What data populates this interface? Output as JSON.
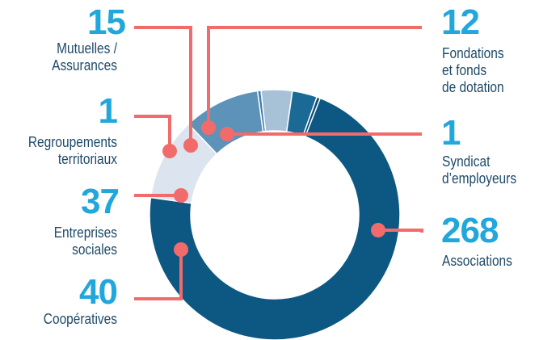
{
  "chart_data": {
    "type": "pie",
    "donut": true,
    "title": "",
    "total": 374,
    "slices": [
      {
        "label_lines": [
          "Associations"
        ],
        "value": 268,
        "color": "#0d5883"
      },
      {
        "label_lines": [
          "Coopératives"
        ],
        "value": 40,
        "color": "#dbe4ef"
      },
      {
        "label_lines": [
          "Entreprises",
          "sociales"
        ],
        "value": 37,
        "color": "#5d93b9"
      },
      {
        "label_lines": [
          "Regroupements",
          "territoriaux"
        ],
        "value": 1,
        "color": "#3f7daa"
      },
      {
        "label_lines": [
          "Mutuelles /",
          "Assurances"
        ],
        "value": 15,
        "color": "#a7c1d7"
      },
      {
        "label_lines": [
          "Fondations",
          "et fonds",
          "de dotation"
        ],
        "value": 12,
        "color": "#1a6a95"
      },
      {
        "label_lines": [
          "Syndicat",
          "d’employeurs"
        ],
        "value": 1,
        "color": "#0b4f78"
      }
    ],
    "legend": "callouts",
    "grid": false
  },
  "colors": {
    "value_text": "#22a7dc",
    "label_text": "#1e4a68",
    "leader_line": "#f26b6b",
    "separator": "#ffffff"
  }
}
